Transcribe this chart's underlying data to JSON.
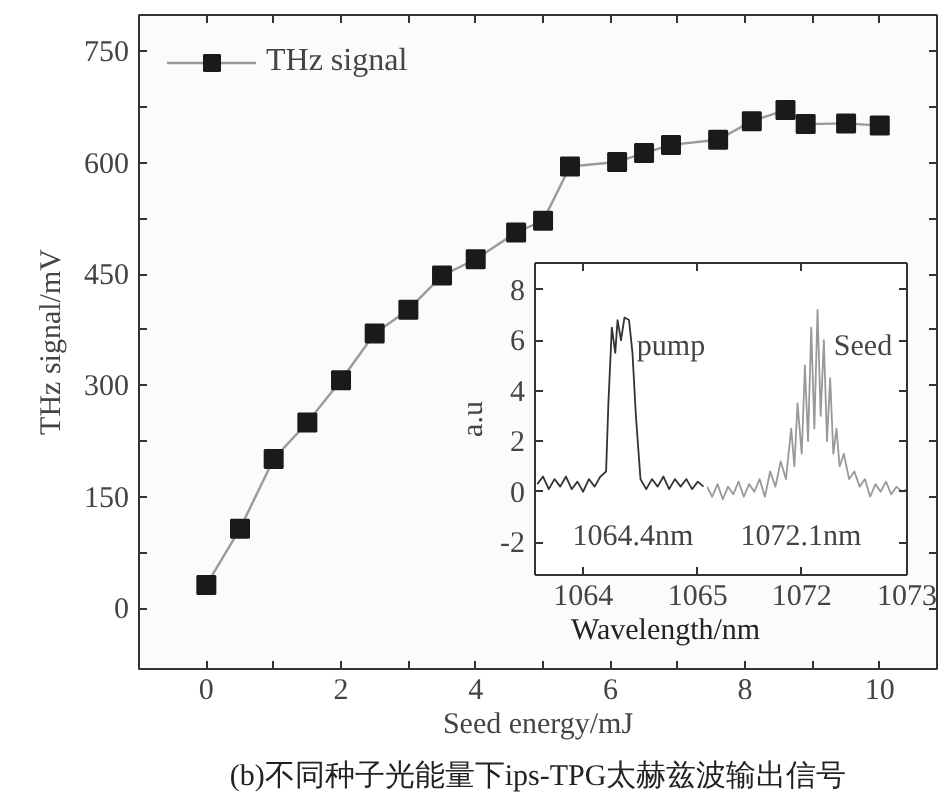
{
  "chart_data": [
    {
      "type": "line",
      "xlabel": "Seed energy/mJ",
      "ylabel": "THz signal/mV",
      "x": [
        0,
        0.5,
        1,
        1.5,
        2,
        2.5,
        3,
        3.5,
        4,
        4.6,
        5,
        5.4,
        6.1,
        6.5,
        6.9,
        7.6,
        8.1,
        8.6,
        8.9,
        9.5,
        10
      ],
      "series": [
        {
          "name": "THz signal",
          "color": "#1a1a1a",
          "values": [
            31,
            107,
            201,
            250,
            307,
            370,
            402,
            448,
            470,
            506,
            522,
            595,
            601,
            613,
            624,
            631,
            656,
            671,
            652,
            653,
            650
          ]
        }
      ],
      "xlim": [
        -1,
        10.85
      ],
      "ylim": [
        -82,
        799
      ],
      "xticks": [
        0,
        {
          "value": 1,
          "label": null
        },
        2,
        {
          "value": 3,
          "label": null
        },
        4,
        {
          "value": 5,
          "label": null
        },
        6,
        {
          "value": 7,
          "label": null
        },
        8,
        {
          "value": 9,
          "label": null
        },
        10
      ],
      "yticks": [
        0,
        {
          "value": 75,
          "label": null
        },
        150,
        {
          "value": 225,
          "label": null
        },
        300,
        {
          "value": 375,
          "label": null
        },
        450,
        {
          "value": 525,
          "label": null
        },
        600,
        {
          "value": 675,
          "label": null
        },
        750
      ],
      "marker": "square",
      "legend": "top left",
      "grid": false,
      "annotations": [
        "(b)不同种子光能量下ips-TPG太赫兹波输出信号"
      ]
    },
    {
      "type": "line",
      "xlabel": "Wavelength/nm",
      "ylabel": "a.u",
      "series": [
        {
          "color": "#333333",
          "x": [
            1063.6,
            1063.65,
            1063.7,
            1063.75,
            1063.8,
            1063.85,
            1063.9,
            1063.95,
            1064.0,
            1064.05,
            1064.1,
            1064.15,
            1064.2,
            1064.22,
            1064.25,
            1064.28,
            1064.3,
            1064.33,
            1064.36,
            1064.4,
            1064.43,
            1064.46,
            1064.5,
            1064.55,
            1064.6,
            1064.65,
            1064.7,
            1064.75,
            1064.8,
            1064.85,
            1064.9,
            1064.95,
            1065.0,
            1065.05
          ],
          "values": [
            0.3,
            0.6,
            0.1,
            0.5,
            0.2,
            0.6,
            0.1,
            0.4,
            0.0,
            0.5,
            0.2,
            0.6,
            0.8,
            3.5,
            6.5,
            5.5,
            6.8,
            6.0,
            6.9,
            6.8,
            5.5,
            3.0,
            0.5,
            0.1,
            0.5,
            0.2,
            0.6,
            0.1,
            0.5,
            0.2,
            0.5,
            0.1,
            0.4,
            0.2
          ]
        }
      ],
      "xlim": [
        1063.58,
        1065.08
      ],
      "ylim": [
        -3.3,
        9.06
      ],
      "xticks": [
        1064,
        1065
      ],
      "yticks": [
        -2,
        0,
        2,
        4,
        6,
        8
      ],
      "marker": "none",
      "grid": false,
      "annotations": [
        "pump",
        "1064.4nm"
      ]
    },
    {
      "type": "line",
      "series": [
        {
          "color": "#999999",
          "x": [
            1071.1,
            1071.15,
            1071.2,
            1071.25,
            1071.3,
            1071.35,
            1071.4,
            1071.45,
            1071.5,
            1071.55,
            1071.6,
            1071.65,
            1071.7,
            1071.75,
            1071.8,
            1071.85,
            1071.9,
            1071.93,
            1071.96,
            1072.0,
            1072.03,
            1072.06,
            1072.09,
            1072.12,
            1072.15,
            1072.18,
            1072.21,
            1072.24,
            1072.27,
            1072.3,
            1072.33,
            1072.36,
            1072.4,
            1072.45,
            1072.5,
            1072.55,
            1072.6,
            1072.65,
            1072.7,
            1072.75,
            1072.8,
            1072.85,
            1072.9,
            1072.95,
            1073.0
          ],
          "values": [
            0.2,
            -0.2,
            0.3,
            -0.3,
            0.2,
            -0.1,
            0.4,
            -0.2,
            0.3,
            0,
            0.5,
            -0.2,
            0.8,
            0.2,
            1.2,
            0.5,
            2.5,
            1.0,
            3.5,
            1.5,
            5.0,
            2.0,
            6.5,
            2.5,
            7.2,
            3.0,
            6.0,
            2.0,
            4.5,
            1.5,
            2.5,
            1.0,
            1.5,
            0.5,
            0.8,
            0.2,
            0.5,
            -0.2,
            0.3,
            0,
            0.4,
            -0.1,
            0.2,
            0,
            0.1
          ]
        }
      ],
      "xlim": [
        1071.1,
        1073.0
      ],
      "ylim": [
        -3.3,
        9.06
      ],
      "xticks": [
        1072,
        1073
      ],
      "yticks": [
        -2,
        0,
        2,
        4,
        6,
        8
      ],
      "tick_labels": "x",
      "marker": "none",
      "grid": false,
      "annotations": [
        "Seed",
        "1072.1nm"
      ]
    }
  ]
}
